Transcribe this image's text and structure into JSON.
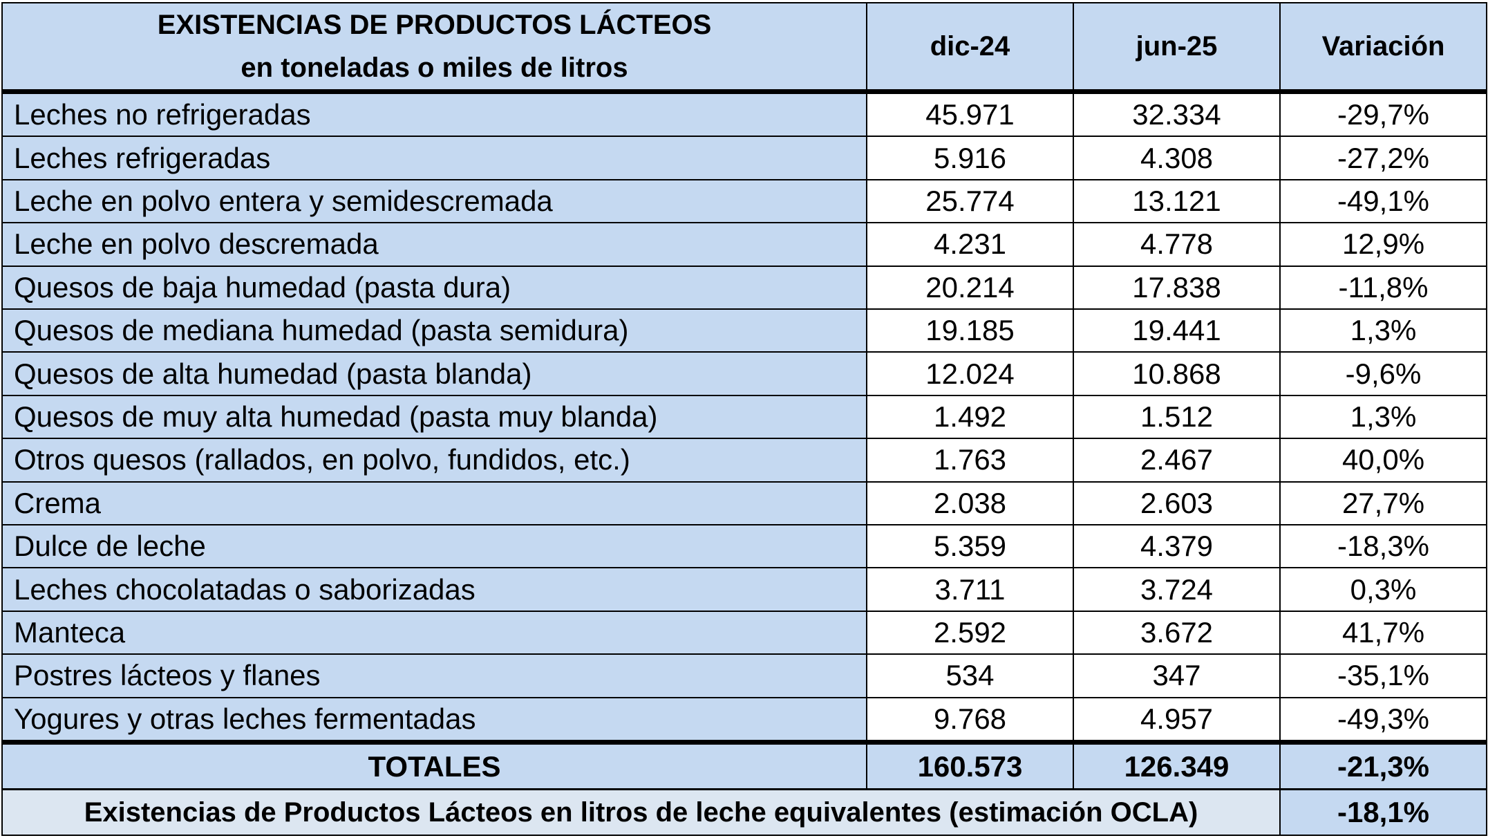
{
  "header": {
    "title_line1": "EXISTENCIAS DE PRODUCTOS LÁCTEOS",
    "title_line2": "en toneladas o miles de litros",
    "col1": "dic-24",
    "col2": "jun-25",
    "col3": "Variación"
  },
  "rows": [
    {
      "name": "Leches no refrigeradas",
      "dic": "45.971",
      "jun": "32.334",
      "var": "-29,7%"
    },
    {
      "name": "Leches refrigeradas",
      "dic": "5.916",
      "jun": "4.308",
      "var": "-27,2%"
    },
    {
      "name": "Leche en polvo entera y semidescremada",
      "dic": "25.774",
      "jun": "13.121",
      "var": "-49,1%"
    },
    {
      "name": "Leche en polvo descremada",
      "dic": "4.231",
      "jun": "4.778",
      "var": "12,9%"
    },
    {
      "name": "Quesos de baja humedad (pasta dura)",
      "dic": "20.214",
      "jun": "17.838",
      "var": "-11,8%"
    },
    {
      "name": "Quesos de mediana humedad (pasta semidura)",
      "dic": "19.185",
      "jun": "19.441",
      "var": "1,3%"
    },
    {
      "name": "Quesos de alta humedad (pasta blanda)",
      "dic": "12.024",
      "jun": "10.868",
      "var": "-9,6%"
    },
    {
      "name": "Quesos de muy alta humedad (pasta muy blanda)",
      "dic": "1.492",
      "jun": "1.512",
      "var": "1,3%"
    },
    {
      "name": "Otros quesos (rallados, en polvo, fundidos, etc.)",
      "dic": "1.763",
      "jun": "2.467",
      "var": "40,0%"
    },
    {
      "name": "Crema",
      "dic": "2.038",
      "jun": "2.603",
      "var": "27,7%"
    },
    {
      "name": "Dulce de leche",
      "dic": "5.359",
      "jun": "4.379",
      "var": "-18,3%"
    },
    {
      "name": "Leches chocolatadas o saborizadas",
      "dic": "3.711",
      "jun": "3.724",
      "var": "0,3%"
    },
    {
      "name": "Manteca",
      "dic": "2.592",
      "jun": "3.672",
      "var": "41,7%"
    },
    {
      "name": "Postres lácteos y flanes",
      "dic": "534",
      "jun": "347",
      "var": "-35,1%"
    },
    {
      "name": "Yogures y otras leches fermentadas",
      "dic": "9.768",
      "jun": "4.957",
      "var": "-49,3%"
    }
  ],
  "totals": {
    "label": "TOTALES",
    "dic": "160.573",
    "jun": "126.349",
    "var": "-21,3%"
  },
  "footer": {
    "label": "Existencias de Productos Lácteos en litros de leche equivalentes (estimación OCLA)",
    "value": "-18,1%"
  },
  "colors": {
    "header_bg": "#c5d9f1",
    "footer_bg": "#dce6f1",
    "border": "#000000"
  }
}
